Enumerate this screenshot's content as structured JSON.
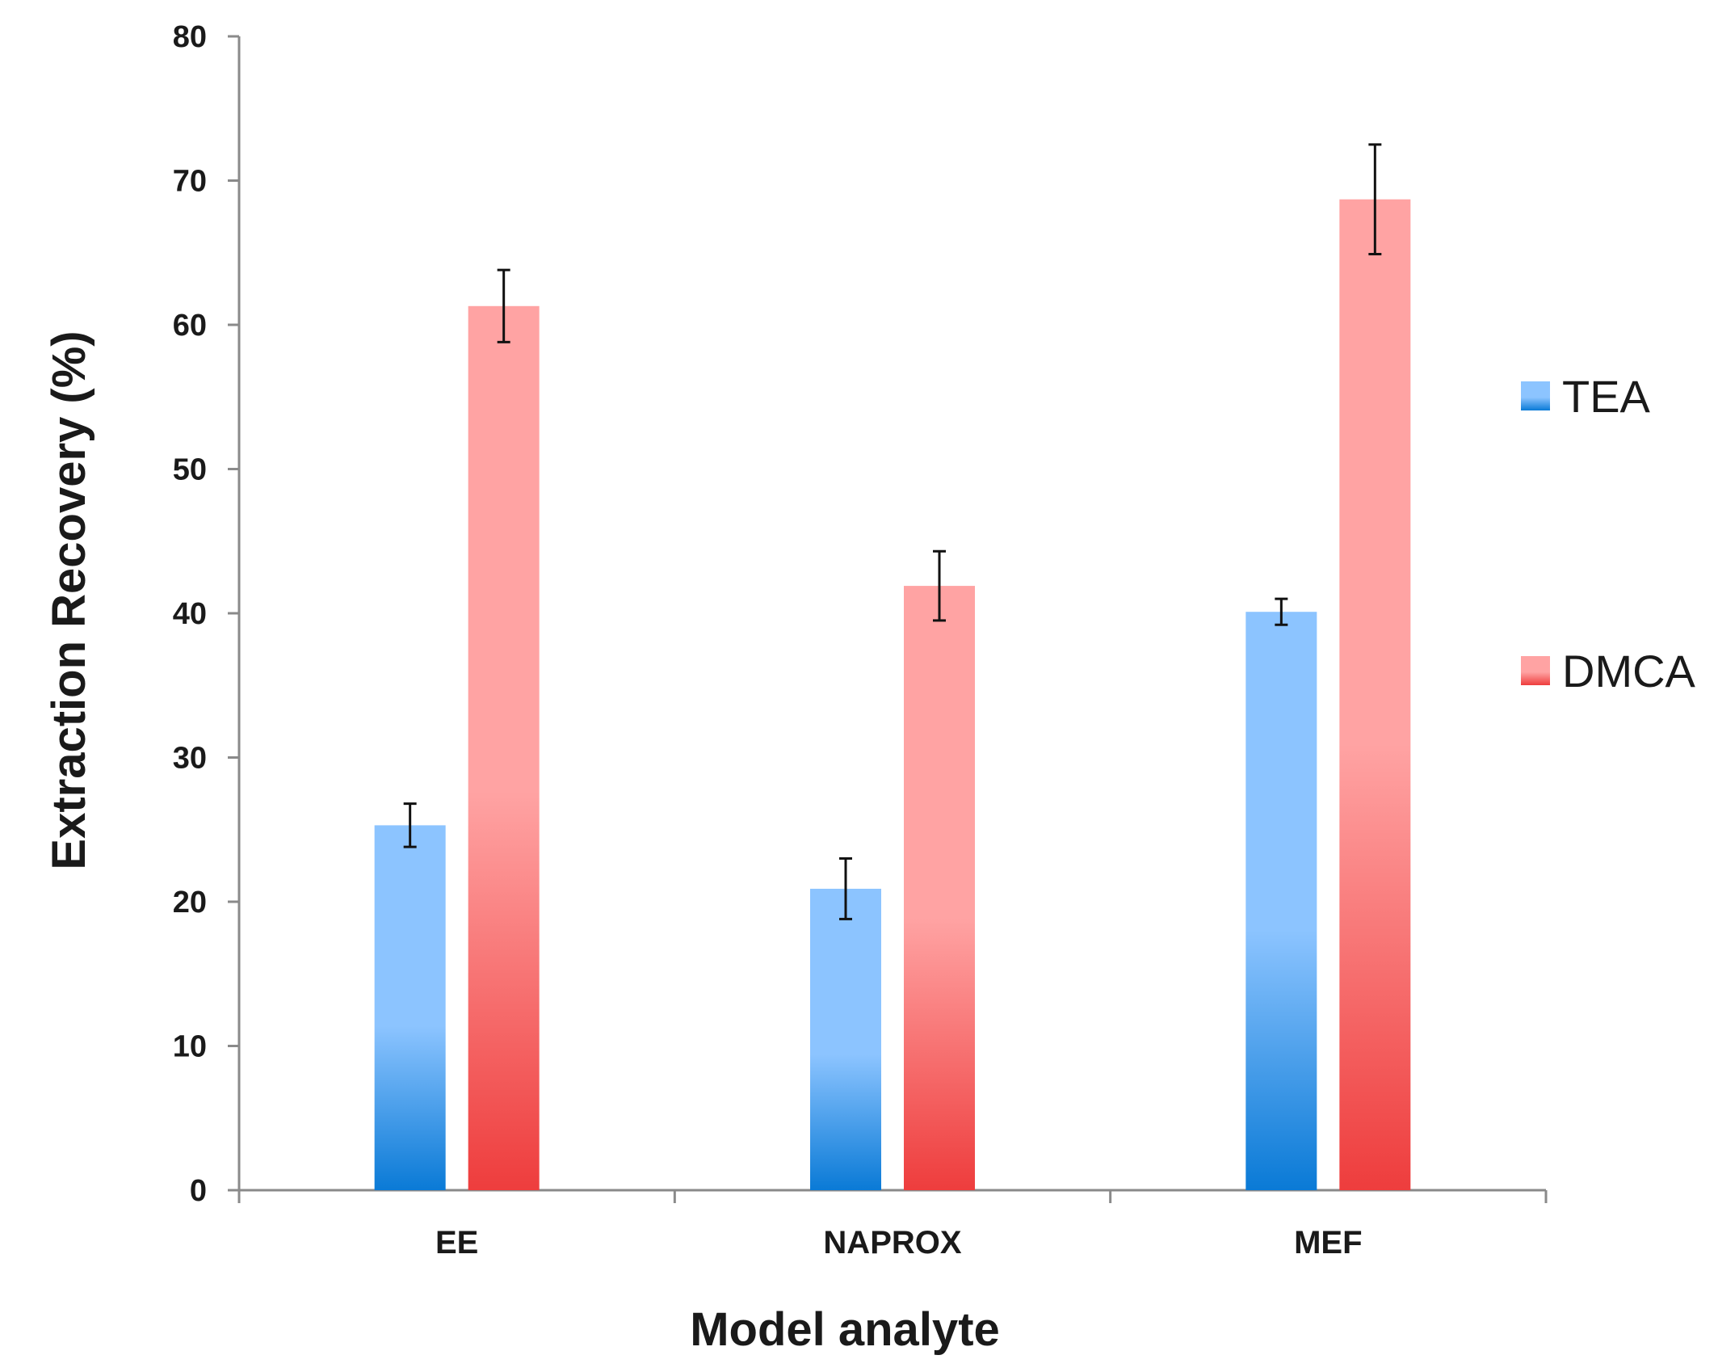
{
  "chart_data": {
    "type": "bar",
    "title": "",
    "xlabel": "Model analyte",
    "ylabel": "Extraction Recovery (%)",
    "ylim": [
      0,
      80
    ],
    "yticks": [
      0,
      10,
      20,
      30,
      40,
      50,
      60,
      70,
      80
    ],
    "categories": [
      "EE",
      "NAPROX",
      "MEF"
    ],
    "series": [
      {
        "name": "TEA",
        "color_top": "#8cc4ff",
        "color_bottom": "#0a7ad6",
        "values": [
          25.3,
          20.9,
          40.1
        ],
        "errors": [
          1.5,
          2.1,
          0.9
        ]
      },
      {
        "name": "DMCA",
        "color_top": "#ffa3a3",
        "color_bottom": "#ee3d3d",
        "values": [
          61.3,
          41.9,
          68.7
        ],
        "errors": [
          2.5,
          2.4,
          3.8
        ]
      }
    ],
    "legend_position": "right",
    "grid": false
  }
}
